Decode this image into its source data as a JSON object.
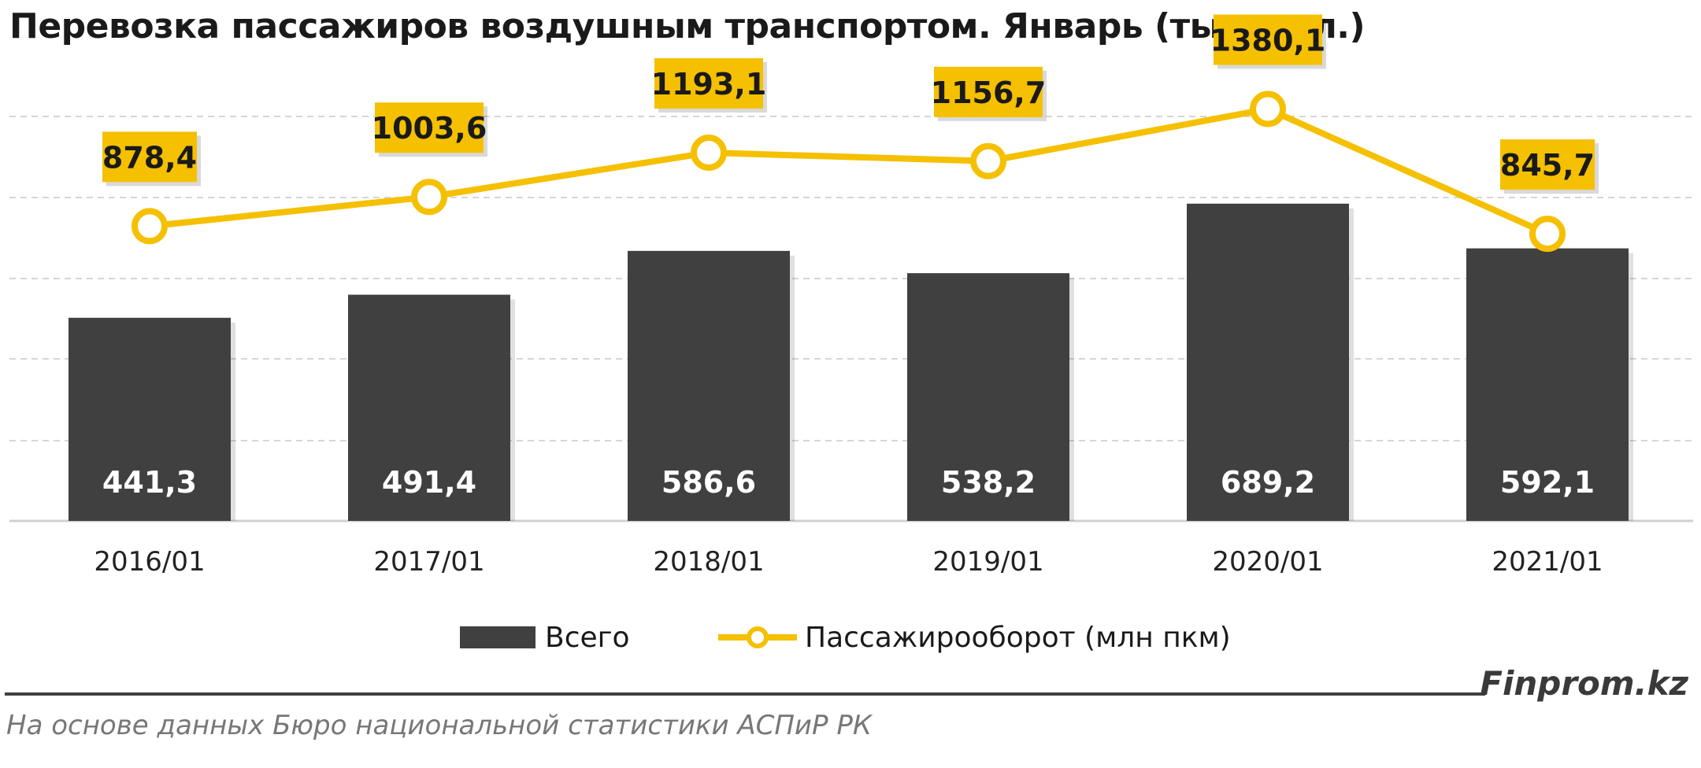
{
  "chart_data": {
    "type": "bar",
    "title": "Перевозка пассажиров воздушным транспортом. Январь (тыс. чел.)",
    "categories": [
      "2016/01",
      "2017/01",
      "2018/01",
      "2019/01",
      "2020/01",
      "2021/01"
    ],
    "series": [
      {
        "name": "Всего",
        "type": "bar",
        "values": [
          441.3,
          491.4,
          586.6,
          538.2,
          689.2,
          592.1
        ],
        "labels": [
          "441,3",
          "491,4",
          "586,6",
          "538,2",
          "689,2",
          "592,1"
        ],
        "color": "#404040"
      },
      {
        "name": "Пассажирооборот (млн пкм)",
        "type": "line",
        "values": [
          878.4,
          1003.6,
          1193.1,
          1156.7,
          1380.1,
          845.7
        ],
        "labels": [
          "878,4",
          "1003,6",
          "1193,1",
          "1156,7",
          "1380,1",
          "845,7"
        ],
        "color": "#F5C000"
      }
    ],
    "grid": true,
    "legend_position": "bottom",
    "y_axis_labels": false
  },
  "footer": {
    "brand": "Finprom.kz",
    "source": "На основе данных  Бюро национальной  статистики АСПиР РК"
  }
}
